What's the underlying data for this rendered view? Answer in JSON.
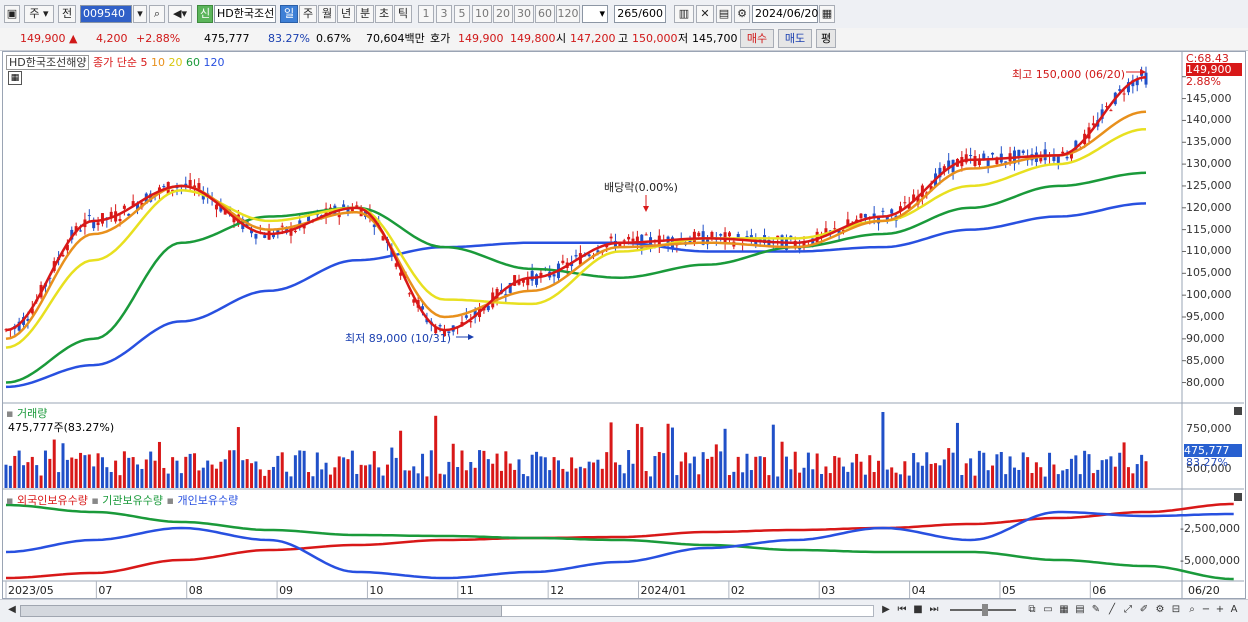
{
  "toolbar": {
    "market": "주",
    "scope": "전",
    "code": "009540",
    "new_badge": "신",
    "stock_name": "HD한국조선",
    "periods": [
      "일",
      "주",
      "월",
      "년",
      "분",
      "초",
      "틱"
    ],
    "selected_period": "일",
    "numbers": [
      "1",
      "3",
      "5",
      "10",
      "20",
      "30",
      "60",
      "120"
    ],
    "count": "265",
    "count_max": "/600",
    "date": "2024/06/20"
  },
  "quote": {
    "price": "149,900",
    "change": "4,200",
    "change_pct": "+2.88%",
    "volume": "475,777",
    "volume_ratio": "83.27%",
    "turnover": "0.67%",
    "amount": "70,604백만",
    "ask_label": "호가",
    "ask": "149,900",
    "bid": "149,800",
    "open_label": "시",
    "open": "147,200",
    "high_label": "고",
    "high": "150,000",
    "low_label": "저",
    "low": "145,700",
    "buy": "매수",
    "sell": "매도",
    "eval": "평"
  },
  "legend": {
    "name": "HD한국조선해양",
    "ma_prefix": "종가 단순",
    "ma": [
      "5",
      "10",
      "20",
      "60",
      "120"
    ],
    "ma_colors": [
      "#d81818",
      "#e8901c",
      "#e8e020",
      "#1a9a3a",
      "#2850e0"
    ]
  },
  "price_axis": {
    "ticks": [
      "150,000",
      "145,000",
      "140,000",
      "135,000",
      "130,000",
      "125,000",
      "120,000",
      "115,000",
      "110,000",
      "105,000",
      "100,000",
      "95,000",
      "90,000",
      "85,000",
      "80,000"
    ],
    "top_label": "C:68.43",
    "current": "149,900",
    "current_pct": "2.88%"
  },
  "annotations": {
    "high": "최고 150,000 (06/20)",
    "low": "최저 89,000 (10/31)",
    "dividend": "배당락(0.00%)"
  },
  "volume_panel": {
    "title": "거래량",
    "value": "475,777주(83.27%)",
    "ticks": [
      "750,000",
      "500,000"
    ],
    "current": "475,777",
    "current_pct": "83.27%"
  },
  "holding_panel": {
    "series": [
      "외국인보유수량",
      "기관보유수량",
      "개인보유수량"
    ],
    "colors": [
      "#d81818",
      "#1a9a3a",
      "#2850e0"
    ],
    "ticks": [
      "-2,500,000",
      "-5,000,000"
    ]
  },
  "x_axis": [
    "2023/05",
    "07",
    "08",
    "09",
    "10",
    "11",
    "12",
    "2024/01",
    "02",
    "03",
    "04",
    "05",
    "06"
  ],
  "x_right": "06/20",
  "chart_data": {
    "type": "line",
    "x": [
      "2023/05",
      "07",
      "08",
      "09",
      "10",
      "11",
      "12",
      "2024/01",
      "02",
      "03",
      "04",
      "05",
      "06",
      "06/20"
    ],
    "series": [
      {
        "name": "5",
        "values": [
          92000,
          117000,
          125000,
          114000,
          120000,
          92000,
          104000,
          112000,
          113000,
          112000,
          118000,
          131000,
          132000,
          149900
        ]
      },
      {
        "name": "10",
        "values": [
          90000,
          114000,
          125000,
          115000,
          119000,
          95000,
          101000,
          111000,
          112000,
          111000,
          117000,
          129000,
          132000,
          142000
        ]
      },
      {
        "name": "20",
        "values": [
          88000,
          108000,
          124000,
          117000,
          120000,
          99000,
          98000,
          110000,
          113000,
          113000,
          117000,
          125000,
          130000,
          138000
        ]
      },
      {
        "name": "60",
        "values": [
          80000,
          90000,
          112000,
          118000,
          120000,
          111000,
          106000,
          104000,
          107000,
          111000,
          114000,
          120000,
          125000,
          128000
        ]
      },
      {
        "name": "120",
        "values": [
          79000,
          84000,
          94000,
          101000,
          108000,
          111000,
          112000,
          112000,
          110000,
          110000,
          111000,
          115000,
          118000,
          121000
        ]
      }
    ],
    "ylim": [
      76000,
      152000
    ]
  }
}
